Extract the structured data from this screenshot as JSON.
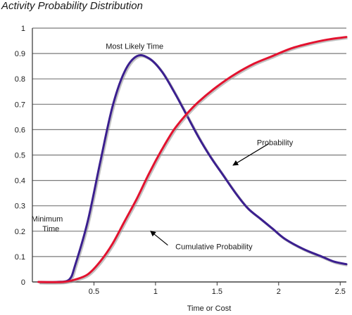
{
  "chart_data": {
    "type": "line",
    "title": "Activity Probability Distribution",
    "xlabel": "Time or Cost",
    "ylabel": "",
    "xlim": [
      0,
      2.55
    ],
    "ylim": [
      0,
      1
    ],
    "x_ticks": [
      0.5,
      1,
      1.5,
      2,
      2.5
    ],
    "x_tick_labels": [
      "0.5",
      "1",
      "1.5",
      "2",
      "2.5"
    ],
    "y_ticks": [
      0,
      0.1,
      0.2,
      0.3,
      0.4,
      0.5,
      0.6,
      0.7,
      0.8,
      0.9,
      1
    ],
    "y_tick_labels": [
      "0",
      "0.1",
      "0.2",
      "0.3",
      "0.4",
      "0.5",
      "0.6",
      "0.7",
      "0.8",
      "0.9",
      "1"
    ],
    "grid": "horizontal",
    "legend": "none",
    "series": [
      {
        "name": "Probability",
        "color": "#3b1f8f",
        "points": [
          [
            0.05,
            0.0
          ],
          [
            0.2,
            0.0
          ],
          [
            0.3,
            0.01
          ],
          [
            0.35,
            0.07
          ],
          [
            0.45,
            0.24
          ],
          [
            0.55,
            0.47
          ],
          [
            0.65,
            0.69
          ],
          [
            0.75,
            0.83
          ],
          [
            0.85,
            0.89
          ],
          [
            0.95,
            0.88
          ],
          [
            1.05,
            0.83
          ],
          [
            1.15,
            0.75
          ],
          [
            1.25,
            0.66
          ],
          [
            1.35,
            0.57
          ],
          [
            1.45,
            0.49
          ],
          [
            1.55,
            0.42
          ],
          [
            1.65,
            0.35
          ],
          [
            1.75,
            0.29
          ],
          [
            1.85,
            0.25
          ],
          [
            1.95,
            0.21
          ],
          [
            2.05,
            0.17
          ],
          [
            2.2,
            0.13
          ],
          [
            2.35,
            0.1
          ],
          [
            2.45,
            0.08
          ],
          [
            2.55,
            0.07
          ]
        ]
      },
      {
        "name": "Cumulative Probability",
        "color": "#e3122f",
        "points": [
          [
            0.05,
            0.0
          ],
          [
            0.25,
            0.0
          ],
          [
            0.35,
            0.01
          ],
          [
            0.45,
            0.03
          ],
          [
            0.55,
            0.08
          ],
          [
            0.65,
            0.15
          ],
          [
            0.75,
            0.24
          ],
          [
            0.85,
            0.33
          ],
          [
            0.95,
            0.43
          ],
          [
            1.05,
            0.52
          ],
          [
            1.15,
            0.6
          ],
          [
            1.25,
            0.66
          ],
          [
            1.35,
            0.71
          ],
          [
            1.5,
            0.77
          ],
          [
            1.65,
            0.82
          ],
          [
            1.8,
            0.86
          ],
          [
            1.95,
            0.89
          ],
          [
            2.1,
            0.92
          ],
          [
            2.25,
            0.94
          ],
          [
            2.4,
            0.955
          ],
          [
            2.55,
            0.965
          ]
        ]
      }
    ],
    "annotations": [
      {
        "text": "Most Likely Time",
        "x": 0.83,
        "y": 0.93
      },
      {
        "text": "Minimum",
        "x": 0.12,
        "y": 0.25
      },
      {
        "text": "Time",
        "x": 0.15,
        "y": 0.21
      },
      {
        "text": "Probability",
        "x": 1.97,
        "y": 0.55
      },
      {
        "text": "Cumulative Probability",
        "x": 1.12,
        "y": 0.14
      }
    ]
  }
}
